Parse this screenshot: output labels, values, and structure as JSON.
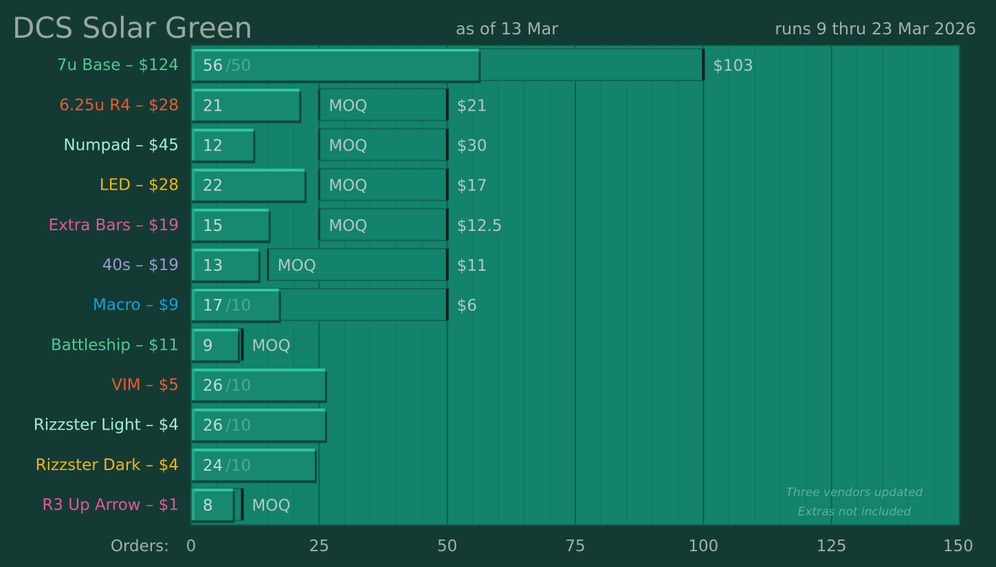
{
  "header": {
    "title": "DCS Solar Green",
    "as_of": "as of 13 Mar",
    "runs": "runs 9 thru 23 Mar 2026"
  },
  "chart_data": {
    "type": "bar",
    "orientation": "horizontal",
    "xlabel": "Orders:",
    "xlim": [
      0,
      150
    ],
    "xticks": [
      0,
      25,
      50,
      75,
      100,
      125,
      150
    ],
    "grid": true,
    "categories": [
      {
        "label": "7u Base – $124",
        "color": "#4ec98f",
        "orders": 56,
        "denom": "/50",
        "target": 100,
        "target_label": "",
        "price": "$103"
      },
      {
        "label": "6.25u R4 – $28",
        "color": "#f05a32",
        "orders": 21,
        "denom": "",
        "moq_start": 25,
        "target": 50,
        "target_label": "MOQ",
        "price": "$21"
      },
      {
        "label": "Numpad – $45",
        "color": "#a6ecd6",
        "orders": 12,
        "denom": "",
        "moq_start": 25,
        "target": 50,
        "target_label": "MOQ",
        "price": "$30"
      },
      {
        "label": "LED – $28",
        "color": "#f5b40f",
        "orders": 22,
        "denom": "",
        "moq_start": 25,
        "target": 50,
        "target_label": "MOQ",
        "price": "$17"
      },
      {
        "label": "Extra Bars – $19",
        "color": "#e8559a",
        "orders": 15,
        "denom": "",
        "moq_start": 25,
        "target": 50,
        "target_label": "MOQ",
        "price": "$12.5"
      },
      {
        "label": "40s – $19",
        "color": "#a097cf",
        "orders": 13,
        "denom": "",
        "moq_start": 15,
        "target": 50,
        "target_label": "MOQ",
        "price": "$11"
      },
      {
        "label": "Macro – $9",
        "color": "#1a9cd8",
        "orders": 17,
        "denom": "/10",
        "target": 50,
        "target_label": "",
        "price": "$6"
      },
      {
        "label": "Battleship – $11",
        "color": "#4ec98f",
        "orders": 9,
        "denom": "",
        "target": 10,
        "target_label": "MOQ",
        "price": ""
      },
      {
        "label": "VIM – $5",
        "color": "#f05a32",
        "orders": 26,
        "denom": "/10",
        "price": ""
      },
      {
        "label": "Rizzster Light – $4",
        "color": "#a6ecd6",
        "orders": 26,
        "denom": "/10",
        "price": ""
      },
      {
        "label": "Rizzster Dark – $4",
        "color": "#f5b40f",
        "orders": 24,
        "denom": "/10",
        "price": ""
      },
      {
        "label": "R3 Up Arrow – $1",
        "color": "#e8559a",
        "orders": 8,
        "denom": "",
        "target": 10,
        "target_label": "MOQ",
        "price": ""
      }
    ],
    "notes": [
      "Three vendors updated",
      "Extras not included"
    ]
  }
}
